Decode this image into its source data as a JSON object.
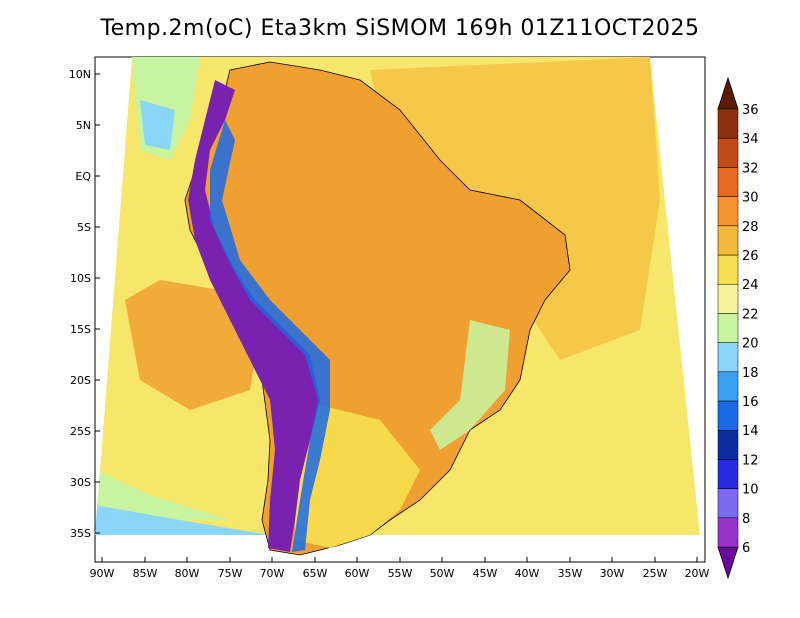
{
  "title": "Temp.2m(oC) Eta3km SiSMOM 169h 01Z11OCT2025",
  "lat_labels": [
    "10N",
    "5N",
    "EQ",
    "5S",
    "10S",
    "15S",
    "20S",
    "25S",
    "30S",
    "35S"
  ],
  "lon_labels": [
    "90W",
    "85W",
    "80W",
    "75W",
    "70W",
    "65W",
    "60W",
    "55W",
    "50W",
    "45W",
    "40W",
    "35W",
    "30W",
    "25W",
    "20W"
  ],
  "colorbar": {
    "levels": [
      "6",
      "8",
      "10",
      "12",
      "14",
      "16",
      "18",
      "20",
      "22",
      "24",
      "26",
      "28",
      "30",
      "32",
      "34",
      "36"
    ],
    "colors": [
      "#6a0a9e",
      "#9a34c8",
      "#7a6cf0",
      "#2a2ae0",
      "#0b2fa0",
      "#1a6ae8",
      "#3aa0f0",
      "#8ad6f8",
      "#c8f4a0",
      "#f6f49a",
      "#f6e050",
      "#f4b83a",
      "#f49430",
      "#e46a20",
      "#c04a18",
      "#8c3010",
      "#5a1c08"
    ]
  },
  "colors": {
    "ocean_warm": "#f6c84a",
    "ocean_cool": "#f6e66a",
    "land_hot": "#f0a030",
    "andes": "#7a22b0",
    "south_cold": "#8ad6f8"
  }
}
